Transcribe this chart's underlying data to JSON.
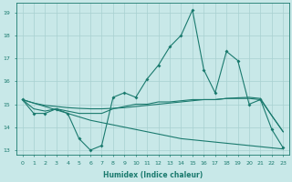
{
  "xlabel": "Humidex (Indice chaleur)",
  "x_values": [
    0,
    1,
    2,
    3,
    4,
    5,
    6,
    7,
    8,
    9,
    10,
    11,
    12,
    13,
    14,
    15,
    16,
    17,
    18,
    19,
    20,
    21,
    22,
    23
  ],
  "line_zigzag": [
    15.2,
    14.6,
    14.6,
    14.8,
    14.6,
    13.5,
    13.0,
    13.2,
    15.3,
    15.5,
    15.3,
    16.1,
    16.7,
    17.5,
    18.0,
    19.1,
    16.5,
    15.5,
    17.3,
    16.9,
    15.0,
    15.2,
    13.9,
    13.1
  ],
  "line_flat": [
    15.2,
    14.8,
    14.7,
    14.8,
    14.7,
    14.6,
    14.6,
    14.6,
    14.8,
    14.9,
    15.0,
    15.0,
    15.1,
    15.1,
    15.15,
    15.2,
    15.2,
    15.2,
    15.25,
    15.25,
    15.25,
    15.2,
    14.5,
    13.8
  ],
  "line_trend1": [
    15.2,
    15.05,
    14.95,
    14.9,
    14.85,
    14.82,
    14.8,
    14.8,
    14.82,
    14.85,
    14.9,
    14.95,
    15.0,
    15.05,
    15.1,
    15.15,
    15.2,
    15.2,
    15.25,
    15.28,
    15.3,
    15.25,
    14.5,
    13.8
  ],
  "line_trend2": [
    15.2,
    15.05,
    14.9,
    14.75,
    14.6,
    14.45,
    14.3,
    14.2,
    14.1,
    14.0,
    13.9,
    13.8,
    13.7,
    13.6,
    13.5,
    13.45,
    13.4,
    13.35,
    13.3,
    13.25,
    13.2,
    13.15,
    13.1,
    13.05
  ],
  "color_main": "#1a7a6e",
  "bg_color": "#c8e8e8",
  "grid_color": "#a8d0d0",
  "ylim": [
    12.8,
    19.4
  ],
  "yticks": [
    13,
    14,
    15,
    16,
    17,
    18,
    19
  ],
  "xticks": [
    0,
    1,
    2,
    3,
    4,
    5,
    6,
    7,
    8,
    9,
    10,
    11,
    12,
    13,
    14,
    15,
    16,
    17,
    18,
    19,
    20,
    21,
    22,
    23
  ]
}
